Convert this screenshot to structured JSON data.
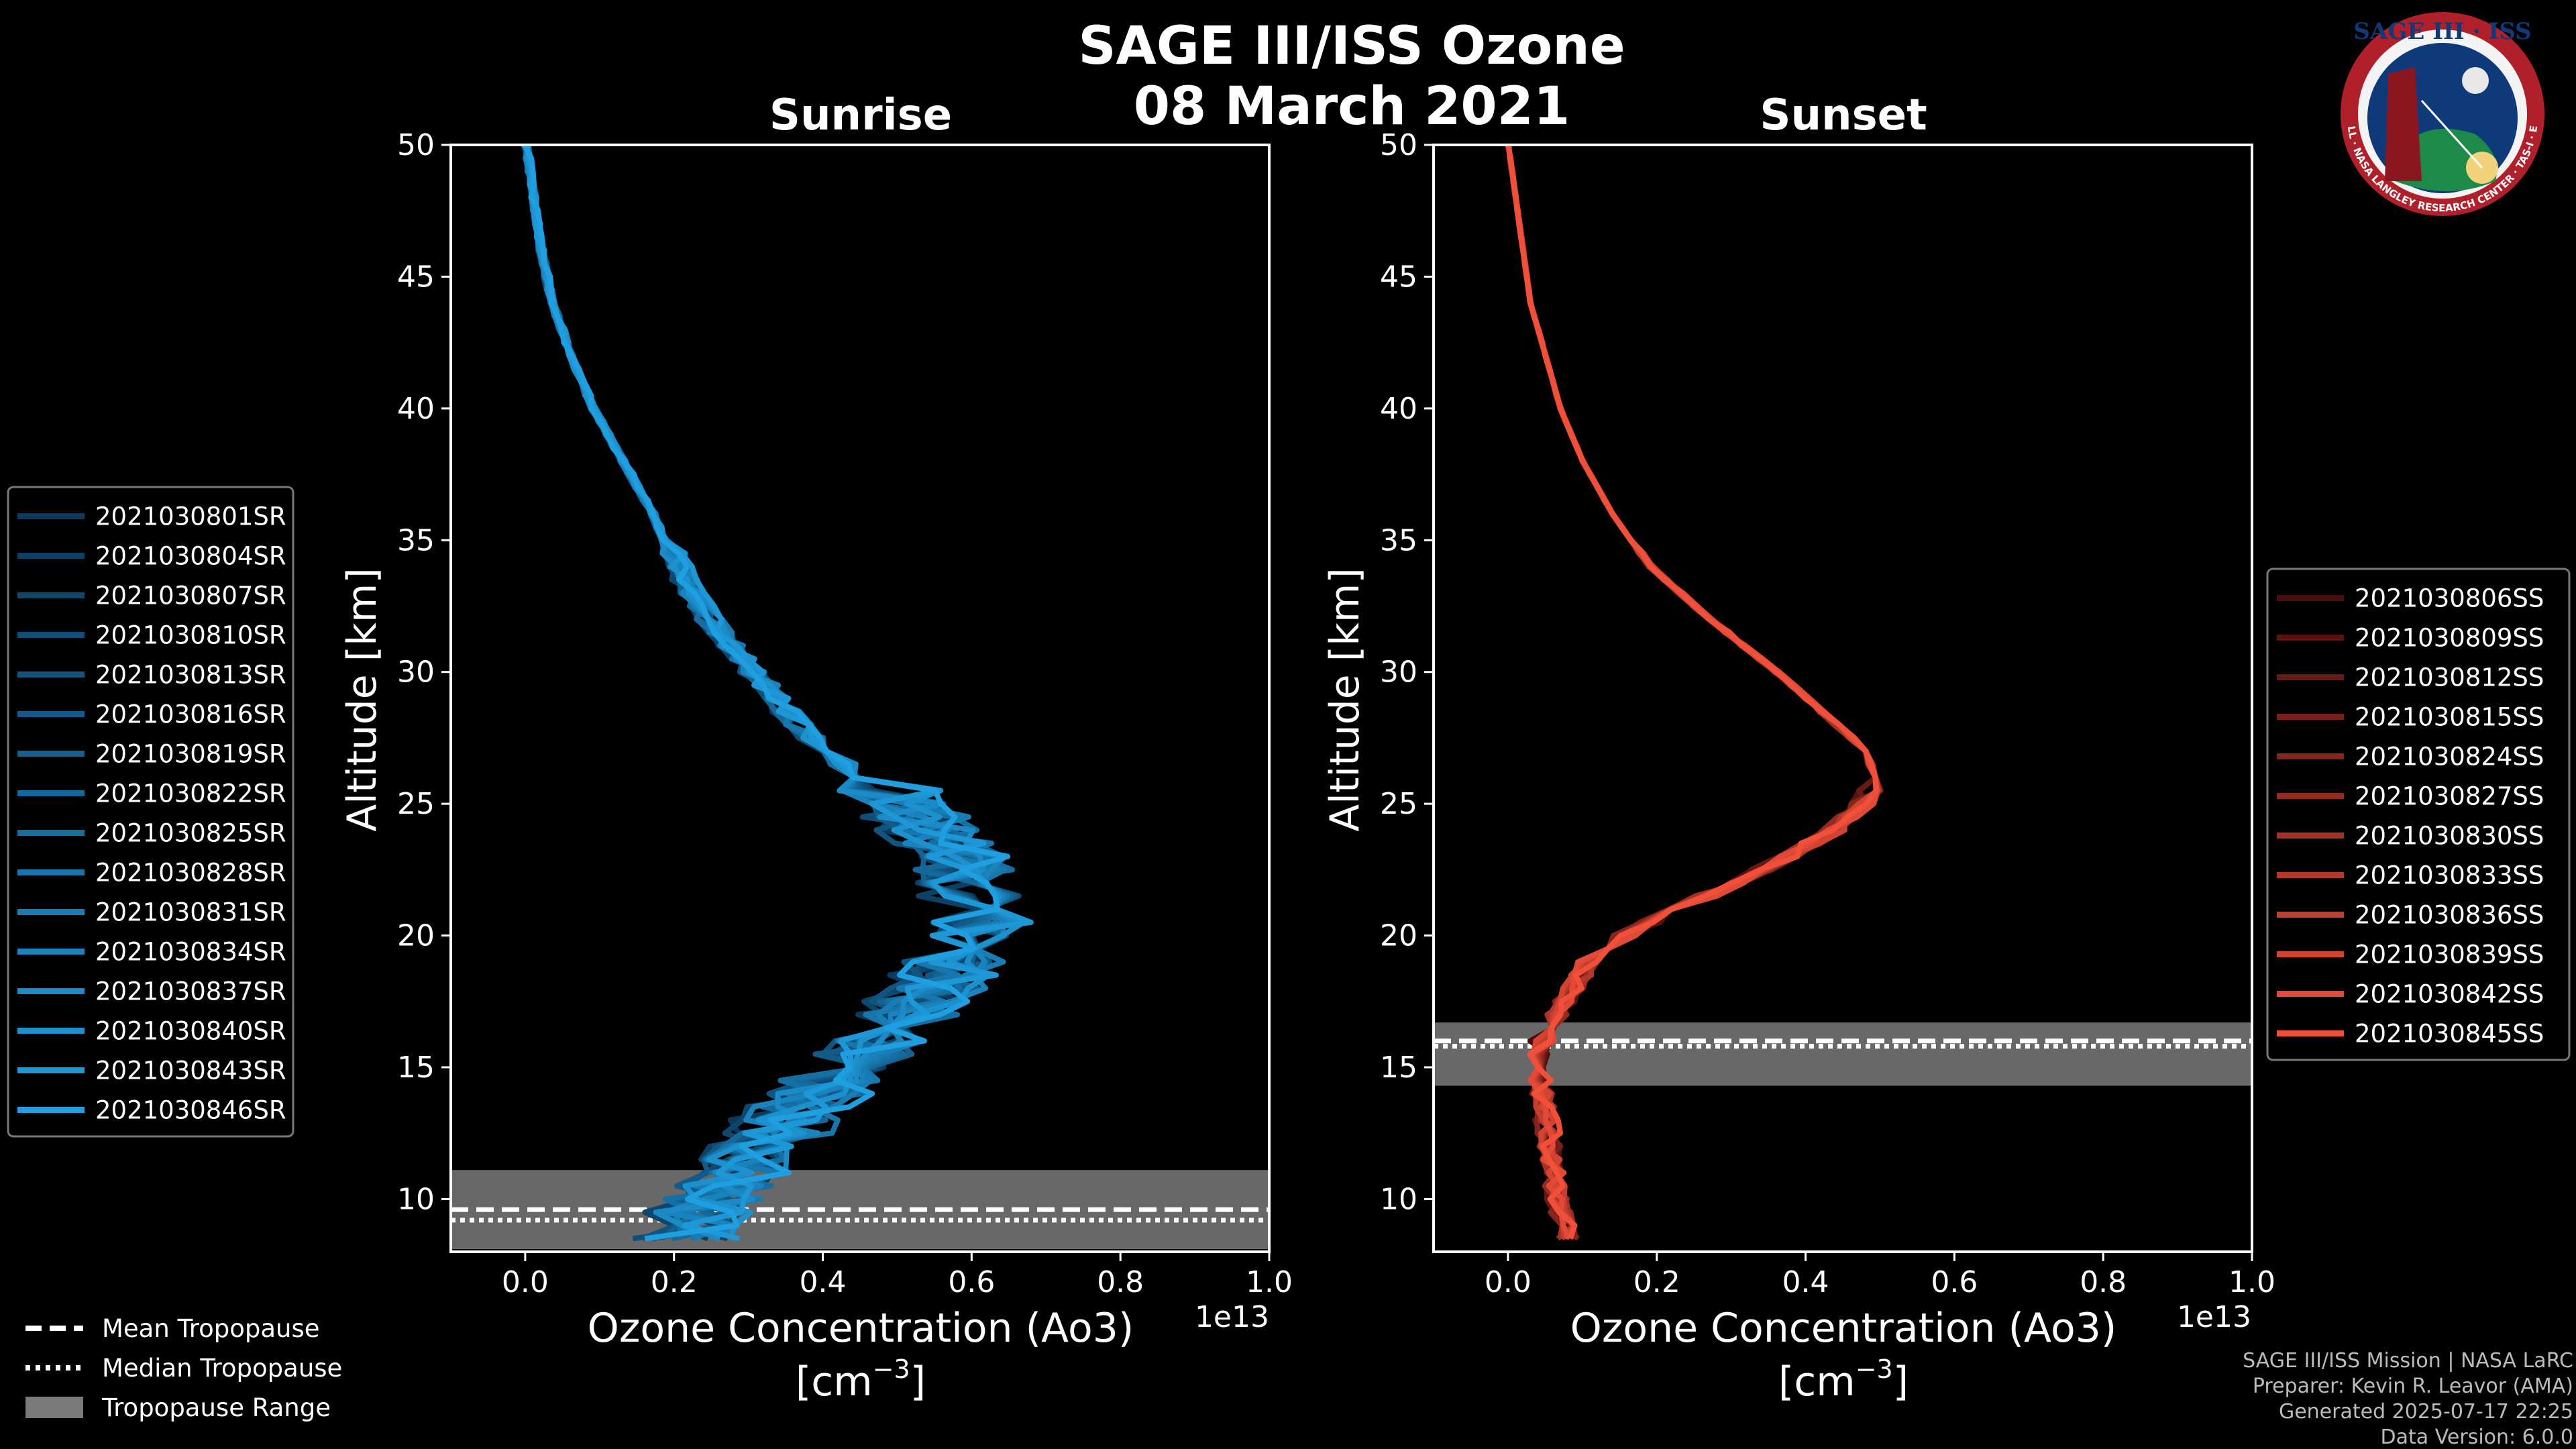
{
  "title": {
    "line1": "SAGE III/ISS Ozone",
    "line2": "08 March 2021"
  },
  "logo": {
    "text_top": "SAGE III · ISS",
    "ring_text": "BALL · NASA LANGLEY RESEARCH CENTER · TAS-I · ESA"
  },
  "credits": [
    "SAGE III/ISS Mission | NASA LaRC",
    "Preparer: Kevin R. Leavor (AMA)",
    "Generated 2025-07-17 22:25",
    "Data Version: 6.0.0"
  ],
  "tropo_legend": [
    {
      "label": "Mean Tropopause",
      "style": "dashed"
    },
    {
      "label": "Median Tropopause",
      "style": "dotted"
    },
    {
      "label": "Tropopause Range",
      "style": "patch"
    }
  ],
  "chart_data": [
    {
      "type": "line",
      "title": "Sunrise",
      "xlabel": "Ozone Concentration (Ao3)",
      "xunit": "[cm",
      "xunit_exp": "−3",
      "xunit_close": "]",
      "xscale_label": "1e13",
      "ylabel": "Altitude [km]",
      "xlim": [
        -0.1,
        1.0
      ],
      "ylim": [
        8,
        50
      ],
      "xticks": [
        0.0,
        0.2,
        0.4,
        0.6,
        0.8,
        1.0
      ],
      "xtick_labels": [
        "0.0",
        "0.2",
        "0.4",
        "0.6",
        "0.8",
        "1.0"
      ],
      "yticks": [
        10,
        15,
        20,
        25,
        30,
        35,
        40,
        45,
        50
      ],
      "ytick_labels": [
        "10",
        "15",
        "20",
        "25",
        "30",
        "35",
        "40",
        "45",
        "50"
      ],
      "tropopause": {
        "min": 8.1,
        "max": 11.1,
        "mean": 9.6,
        "median": 9.2
      },
      "color_dark": "#0b3a5c",
      "color_light": "#1f9ee0",
      "series_names": [
        "2021030801SR",
        "2021030804SR",
        "2021030807SR",
        "2021030810SR",
        "2021030813SR",
        "2021030816SR",
        "2021030819SR",
        "2021030822SR",
        "2021030825SR",
        "2021030828SR",
        "2021030831SR",
        "2021030834SR",
        "2021030837SR",
        "2021030840SR",
        "2021030843SR",
        "2021030846SR"
      ],
      "mean_profile": {
        "alt": [
          50,
          48,
          46,
          44,
          42,
          40,
          38,
          36,
          34,
          32,
          30,
          28,
          26,
          24,
          22,
          20,
          18,
          16,
          14,
          12,
          10,
          9,
          8
        ],
        "val": [
          0.0,
          0.01,
          0.02,
          0.035,
          0.06,
          0.09,
          0.13,
          0.17,
          0.2,
          0.24,
          0.3,
          0.36,
          0.44,
          0.52,
          0.58,
          0.58,
          0.52,
          0.45,
          0.36,
          0.3,
          0.22,
          0.2,
          0.18
        ]
      }
    },
    {
      "type": "line",
      "title": "Sunset",
      "xlabel": "Ozone Concentration (Ao3)",
      "xunit": "[cm",
      "xunit_exp": "−3",
      "xunit_close": "]",
      "xscale_label": "1e13",
      "ylabel": "Altitude [km]",
      "xlim": [
        -0.1,
        1.0
      ],
      "ylim": [
        8,
        50
      ],
      "xticks": [
        0.0,
        0.2,
        0.4,
        0.6,
        0.8,
        1.0
      ],
      "xtick_labels": [
        "0.0",
        "0.2",
        "0.4",
        "0.6",
        "0.8",
        "1.0"
      ],
      "yticks": [
        10,
        15,
        20,
        25,
        30,
        35,
        40,
        45,
        50
      ],
      "ytick_labels": [
        "10",
        "15",
        "20",
        "25",
        "30",
        "35",
        "40",
        "45",
        "50"
      ],
      "tropopause": {
        "min": 14.3,
        "max": 16.7,
        "mean": 16.0,
        "median": 15.8
      },
      "color_dark": "#4a0d0b",
      "color_light": "#f0503a",
      "series_names": [
        "2021030806SS",
        "2021030809SS",
        "2021030812SS",
        "2021030815SS",
        "2021030824SS",
        "2021030827SS",
        "2021030830SS",
        "2021030833SS",
        "2021030836SS",
        "2021030839SS",
        "2021030842SS",
        "2021030845SS"
      ],
      "mean_profile": {
        "alt": [
          50,
          48,
          46,
          44,
          42,
          40,
          38,
          36,
          34,
          32,
          30,
          28,
          27,
          26,
          25,
          24,
          23,
          22,
          21,
          20,
          19,
          18,
          17,
          16,
          15,
          14,
          12,
          10,
          9,
          8
        ],
        "val": [
          0.0,
          0.01,
          0.02,
          0.03,
          0.05,
          0.07,
          0.1,
          0.14,
          0.19,
          0.27,
          0.36,
          0.44,
          0.48,
          0.49,
          0.47,
          0.43,
          0.37,
          0.3,
          0.22,
          0.15,
          0.1,
          0.08,
          0.06,
          0.04,
          0.03,
          0.04,
          0.05,
          0.06,
          0.07,
          0.08
        ]
      }
    }
  ]
}
